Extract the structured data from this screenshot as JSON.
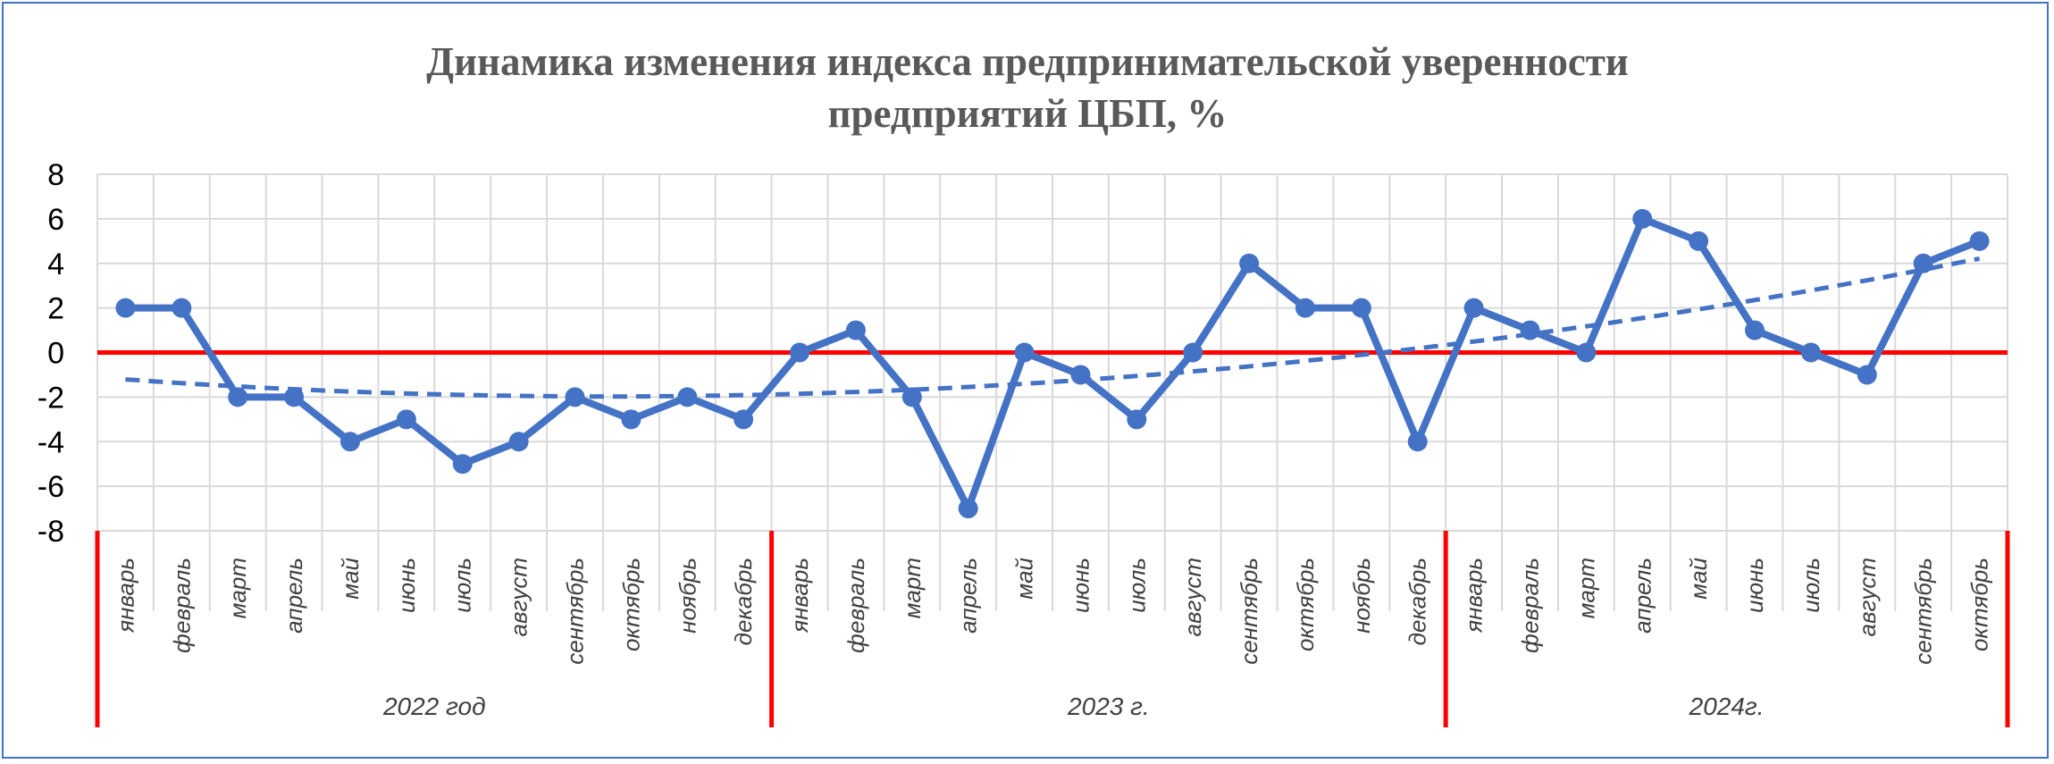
{
  "chart_data": {
    "type": "line",
    "title_lines": [
      "Динамика изменения индекса предпринимательской уверенности",
      "предприятий ЦБП, %"
    ],
    "ylim": [
      -8,
      8
    ],
    "yticks": [
      8,
      6,
      4,
      2,
      0,
      -2,
      -4,
      -6,
      -8
    ],
    "grid": true,
    "zero_line": true,
    "categories": [
      "январь",
      "февраль",
      "март",
      "апрель",
      "май",
      "июнь",
      "июль",
      "август",
      "сентябрь",
      "октябрь",
      "ноябрь",
      "декабрь",
      "январь",
      "февраль",
      "март",
      "апрель",
      "май",
      "июнь",
      "июль",
      "август",
      "сентябрь",
      "октябрь",
      "ноябрь",
      "декабрь",
      "январь",
      "февраль",
      "март",
      "апрель",
      "май",
      "июнь",
      "июль",
      "август",
      "сентябрь",
      "октябрь"
    ],
    "groups": [
      {
        "label": "2022 год",
        "count": 12
      },
      {
        "label": "2023 г.",
        "count": 12
      },
      {
        "label": "2024г.",
        "count": 10
      }
    ],
    "series": [
      {
        "values": [
          2,
          2,
          -2,
          -2,
          -4,
          -3,
          -5,
          -4,
          -2,
          -3,
          -2,
          -3,
          0,
          1,
          -2,
          -7,
          0,
          -1,
          -3,
          0,
          4,
          2,
          2,
          -4,
          2,
          1,
          0,
          6,
          5,
          1,
          0,
          -1,
          4,
          5
        ]
      }
    ],
    "trendline": {
      "type": "polynomial",
      "order": 2,
      "style": "dashed"
    },
    "colors": {
      "series": "#4472C4",
      "zero_line": "#FF0000",
      "separators": "#FF0000",
      "grid": "#D9D9D9",
      "title": "#595959",
      "frame": "#4472C4"
    }
  }
}
